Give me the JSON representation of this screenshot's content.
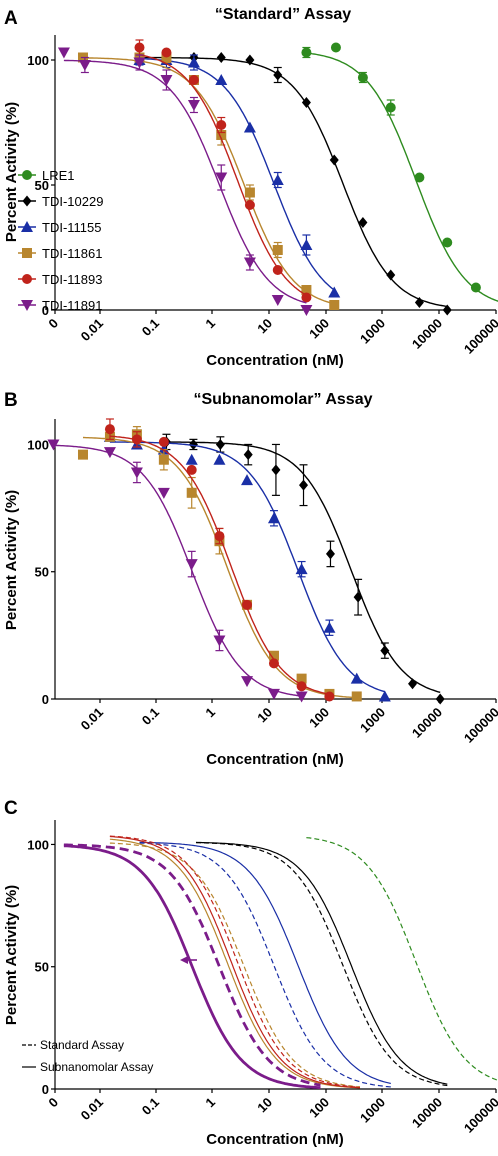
{
  "chart_data": [
    {
      "panel": "A",
      "type": "scatter",
      "title": "“Standard” Assay",
      "xlabel": "Concentration (nM)",
      "ylabel": "Percent Activity (%)",
      "x_scale": "log",
      "x_tick_labels": [
        "0",
        "0.01",
        "0.1",
        "1",
        "10",
        "100",
        "1000",
        "10000",
        "100000"
      ],
      "y_tick_labels": [
        "0",
        "50",
        "100"
      ],
      "ylim": [
        0,
        110
      ],
      "legend_position": "left",
      "series": [
        {
          "name": "LRE1",
          "color": "#2e8b1f",
          "marker": "circle",
          "x": [
            45,
            150,
            450,
            1400,
            4500,
            14000,
            45000,
            140000,
            450000,
            700000
          ],
          "y": [
            103,
            105,
            93,
            81,
            53,
            27,
            9,
            3,
            0,
            0
          ],
          "err": [
            2,
            0,
            2,
            3,
            0,
            0,
            0,
            0,
            0,
            0
          ],
          "fit": {
            "top": 104,
            "bottom": 0,
            "ic50": 3900,
            "hill": 1.0
          }
        },
        {
          "name": "TDI-10229",
          "color": "#000000",
          "marker": "diamond",
          "x": [
            0.05,
            0.15,
            0.46,
            1.4,
            4.5,
            14,
            45,
            140,
            450,
            1400,
            4500,
            14000
          ],
          "y": [
            101,
            102,
            101,
            101,
            100,
            94,
            83,
            60,
            35,
            14,
            3,
            0
          ],
          "err": [
            0,
            0,
            0,
            0,
            0,
            3,
            0,
            0,
            0,
            0,
            0,
            0
          ],
          "fit": {
            "top": 101,
            "bottom": 0,
            "ic50": 200,
            "hill": 1.0
          }
        },
        {
          "name": "TDI-11155",
          "color": "#1a2fa6",
          "marker": "triangle-up",
          "x": [
            0.05,
            0.15,
            0.46,
            1.4,
            4.5,
            14,
            45,
            140
          ],
          "y": [
            100,
            100,
            99,
            92,
            73,
            52,
            26,
            7
          ],
          "err": [
            2,
            3,
            3,
            0,
            0,
            3,
            4,
            0
          ],
          "fit": {
            "top": 101,
            "bottom": 0,
            "ic50": 12,
            "hill": 1.0
          }
        },
        {
          "name": "TDI-11861",
          "color": "#b8862e",
          "marker": "square",
          "x": [
            0.005,
            0.05,
            0.15,
            0.46,
            1.4,
            4.5,
            14,
            45,
            140
          ],
          "y": [
            101,
            101,
            101,
            92,
            70,
            47,
            24,
            8,
            2
          ],
          "err": [
            0,
            0,
            2,
            0,
            4,
            3,
            3,
            0,
            0
          ],
          "fit": {
            "top": 101,
            "bottom": 0,
            "ic50": 3.5,
            "hill": 1.0
          }
        },
        {
          "name": "TDI-11893",
          "color": "#c0231b",
          "marker": "circle",
          "x": [
            0.05,
            0.15,
            0.46,
            1.4,
            4.5,
            14,
            45
          ],
          "y": [
            105,
            103,
            92,
            74,
            42,
            16,
            5
          ],
          "err": [
            3,
            0,
            0,
            3,
            0,
            0,
            0
          ],
          "fit": {
            "top": 104,
            "bottom": 0,
            "ic50": 2.7,
            "hill": 1.0
          }
        },
        {
          "name": "TDI-11891",
          "color": "#7b1c8a",
          "marker": "triangle-down",
          "x": [
            0.0023,
            0.0054,
            0.05,
            0.15,
            0.46,
            1.4,
            4.5,
            14,
            45
          ],
          "y": [
            103,
            98,
            99,
            92,
            82,
            53,
            19,
            4,
            0
          ],
          "err": [
            0,
            3,
            3,
            4,
            3,
            5,
            3,
            0,
            0
          ],
          "fit": {
            "top": 100,
            "bottom": 0,
            "ic50": 1.3,
            "hill": 1.0
          }
        }
      ]
    },
    {
      "panel": "B",
      "type": "scatter",
      "title": "“Subnanomolar” Assay",
      "xlabel": "Concentration (nM)",
      "ylabel": "Percent Activity (%)",
      "x_scale": "log",
      "x_tick_labels": [
        "0.01",
        "0.1",
        "1",
        "10",
        "100",
        "1000",
        "10000",
        "100000"
      ],
      "y_tick_labels": [
        "0",
        "50",
        "100"
      ],
      "ylim": [
        0,
        110
      ],
      "series": [
        {
          "name": "TDI-10229",
          "color": "#000000",
          "marker": "diamond",
          "x": [
            0.15,
            0.45,
            1.35,
            4.2,
            13,
            40,
            120,
            370,
            1100,
            3400,
            10500
          ],
          "y": [
            101,
            100,
            100,
            96,
            90,
            84,
            57,
            40,
            19,
            6,
            0
          ],
          "err": [
            3,
            2,
            3,
            4,
            10,
            8,
            5,
            7,
            3,
            0,
            0
          ],
          "fit": {
            "top": 101,
            "bottom": 0,
            "ic50": 280,
            "hill": 1.0
          }
        },
        {
          "name": "TDI-11155",
          "color": "#1a2fa6",
          "marker": "triangle-up",
          "x": [
            0.015,
            0.045,
            0.135,
            0.42,
            1.3,
            4,
            12,
            37,
            115,
            350,
            1100
          ],
          "y": [
            103,
            100,
            98,
            94,
            94,
            86,
            71,
            51,
            28,
            8,
            1
          ],
          "err": [
            0,
            0,
            0,
            0,
            0,
            0,
            3,
            3,
            3,
            0,
            0
          ],
          "fit": {
            "top": 101,
            "bottom": 0,
            "ic50": 32,
            "hill": 1.0
          }
        },
        {
          "name": "TDI-11861",
          "color": "#b8862e",
          "marker": "square",
          "x": [
            0.005,
            0.015,
            0.045,
            0.135,
            0.42,
            1.3,
            4,
            12,
            37,
            115,
            350
          ],
          "y": [
            96,
            103,
            104,
            94,
            81,
            62,
            37,
            17,
            8,
            2,
            1
          ],
          "err": [
            0,
            0,
            3,
            4,
            6,
            5,
            0,
            0,
            0,
            0,
            0
          ],
          "fit": {
            "top": 103,
            "bottom": 0,
            "ic50": 1.8,
            "hill": 1.0
          }
        },
        {
          "name": "TDI-11893",
          "color": "#c0231b",
          "marker": "circle",
          "x": [
            0.015,
            0.045,
            0.135,
            0.42,
            1.3,
            4,
            12,
            37,
            115
          ],
          "y": [
            106,
            102,
            101,
            90,
            64,
            37,
            14,
            5,
            1
          ],
          "err": [
            4,
            3,
            0,
            0,
            3,
            0,
            0,
            0,
            0
          ],
          "fit": {
            "top": 104,
            "bottom": 0,
            "ic50": 2.1,
            "hill": 1.0
          }
        },
        {
          "name": "TDI-11891",
          "color": "#7b1c8a",
          "marker": "triangle-down",
          "x": [
            0.0015,
            0.015,
            0.045,
            0.135,
            0.42,
            1.3,
            4,
            12,
            37
          ],
          "y": [
            100,
            97,
            89,
            81,
            53,
            23,
            7,
            2,
            1
          ],
          "err": [
            0,
            0,
            4,
            0,
            5,
            4,
            0,
            0,
            0
          ],
          "fit": {
            "top": 100,
            "bottom": 0,
            "ic50": 0.43,
            "hill": 1.0
          }
        }
      ]
    },
    {
      "panel": "C",
      "type": "line",
      "xlabel": "Concentration (nM)",
      "ylabel": "Percent Activity (%)",
      "x_scale": "log",
      "x_tick_labels": [
        "0",
        "0.01",
        "0.1",
        "1",
        "10",
        "100",
        "1000",
        "10000",
        "100000"
      ],
      "y_tick_labels": [
        "0",
        "50",
        "100"
      ],
      "ylim": [
        0,
        110
      ],
      "legend": [
        {
          "label": "Standard Assay",
          "style": "dashed"
        },
        {
          "label": "Subnanomolar Assay",
          "style": "solid"
        }
      ],
      "annotation": "arrow from TDI-11891 standard curve to subnanomolar curve",
      "curves": [
        {
          "compound": "LRE1",
          "assay": "Standard Assay",
          "color": "#2e8b1f",
          "style": "dashed",
          "width": 1.2,
          "top": 104,
          "bottom": 0,
          "ic50": 3900,
          "hill": 1.0,
          "xmin": 45,
          "xmax": 700000
        },
        {
          "compound": "TDI-10229",
          "assay": "Standard Assay",
          "color": "#000000",
          "style": "dashed",
          "width": 1.2,
          "top": 101,
          "bottom": 0,
          "ic50": 200,
          "hill": 1.0,
          "xmin": 0.5,
          "xmax": 14000
        },
        {
          "compound": "TDI-10229",
          "assay": "Subnanomolar Assay",
          "color": "#000000",
          "style": "solid",
          "width": 1.2,
          "top": 101,
          "bottom": 0,
          "ic50": 280,
          "hill": 1.0,
          "xmin": 0.5,
          "xmax": 14000
        },
        {
          "compound": "TDI-11155",
          "assay": "Standard Assay",
          "color": "#1a2fa6",
          "style": "dashed",
          "width": 1.2,
          "top": 101,
          "bottom": 0,
          "ic50": 12,
          "hill": 1.0,
          "xmin": 0.05,
          "xmax": 1400
        },
        {
          "compound": "TDI-11155",
          "assay": "Subnanomolar Assay",
          "color": "#1a2fa6",
          "style": "solid",
          "width": 1.2,
          "top": 101,
          "bottom": 0,
          "ic50": 32,
          "hill": 1.0,
          "xmin": 0.05,
          "xmax": 1400
        },
        {
          "compound": "TDI-11861",
          "assay": "Standard Assay",
          "color": "#b8862e",
          "style": "dashed",
          "width": 1.2,
          "top": 101,
          "bottom": 0,
          "ic50": 3.5,
          "hill": 1.0,
          "xmin": 0.015,
          "xmax": 400
        },
        {
          "compound": "TDI-11861",
          "assay": "Subnanomolar Assay",
          "color": "#b8862e",
          "style": "solid",
          "width": 1.2,
          "top": 103,
          "bottom": 0,
          "ic50": 1.8,
          "hill": 1.0,
          "xmin": 0.015,
          "xmax": 400
        },
        {
          "compound": "TDI-11893",
          "assay": "Standard Assay",
          "color": "#c0231b",
          "style": "dashed",
          "width": 1.2,
          "top": 104,
          "bottom": 0,
          "ic50": 2.7,
          "hill": 1.0,
          "xmin": 0.015,
          "xmax": 400
        },
        {
          "compound": "TDI-11893",
          "assay": "Subnanomolar Assay",
          "color": "#c0231b",
          "style": "solid",
          "width": 1.2,
          "top": 104,
          "bottom": 0,
          "ic50": 2.1,
          "hill": 1.0,
          "xmin": 0.015,
          "xmax": 400
        },
        {
          "compound": "TDI-11891",
          "assay": "Standard Assay",
          "color": "#7b1c8a",
          "style": "dashed",
          "width": 2.8,
          "top": 100,
          "bottom": 0,
          "ic50": 1.3,
          "hill": 1.0,
          "xmin": 0.0023,
          "xmax": 80
        },
        {
          "compound": "TDI-11891",
          "assay": "Subnanomolar Assay",
          "color": "#7b1c8a",
          "style": "solid",
          "width": 2.8,
          "top": 100,
          "bottom": 0,
          "ic50": 0.43,
          "hill": 1.0,
          "xmin": 0.0023,
          "xmax": 80
        }
      ]
    }
  ]
}
